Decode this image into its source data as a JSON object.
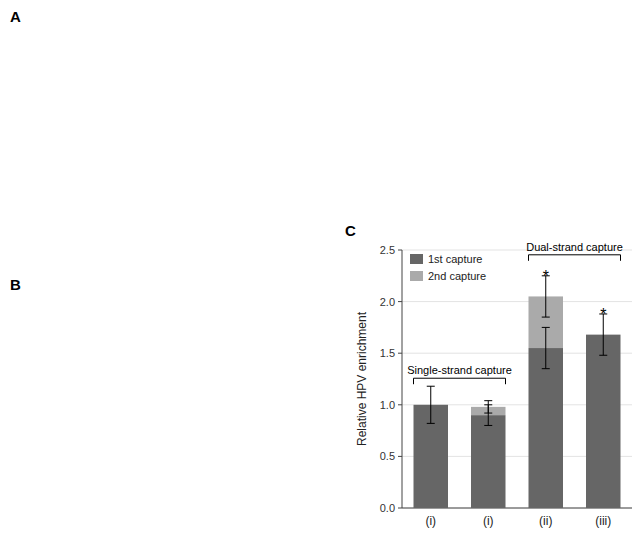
{
  "chart_data": {
    "type": "bar",
    "stacked": true,
    "ylabel": "Relative HPV enrichment",
    "categories": [
      "(i)",
      "(i)",
      "(ii)",
      "(iii)"
    ],
    "series": [
      {
        "name": "1st capture",
        "color": "#666666",
        "values": [
          1.0,
          0.9,
          1.55,
          1.68
        ],
        "errors": [
          0.18,
          0.1,
          0.2,
          0.2
        ]
      },
      {
        "name": "2nd capture",
        "color": "#aaaaaa",
        "values": [
          0.0,
          0.08,
          0.5,
          0.0
        ],
        "errors": [
          0.0,
          0.06,
          0.2,
          0.0
        ]
      }
    ],
    "ylim": [
      0,
      2.5
    ],
    "yticks": [
      {
        "value": 0,
        "label": "0.0"
      },
      0.5,
      {
        "value": 1.0,
        "label": "1.0"
      },
      1.5,
      {
        "value": 2.0,
        "label": "2.0"
      },
      2.5
    ],
    "grid": true,
    "legend": "upper left",
    "annotations": [
      "A",
      "B",
      "C",
      "Single-strand capture",
      "Dual-strand capture",
      "*",
      "*"
    ]
  }
}
